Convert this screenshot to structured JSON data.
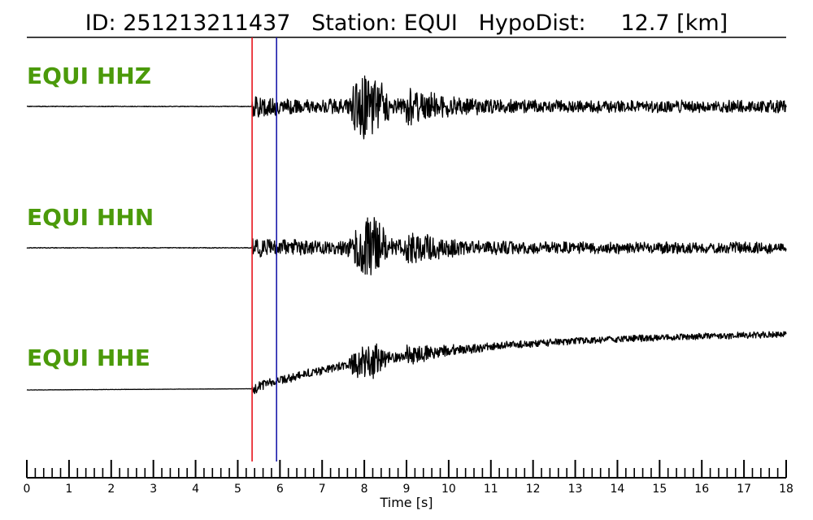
{
  "header": {
    "id_text": "ID: 251213211437",
    "station_text": "Station: EQUI",
    "hypodist_text": "HypoDist:     12.7 [km]"
  },
  "colors": {
    "label": "#4b9a0a",
    "p_pick": "#e8141c",
    "s_pick": "#1a1aaa",
    "trace": "#000000"
  },
  "chart_data": {
    "type": "line",
    "title": "ID: 251213211437   Station: EQUI   HypoDist:     12.7 [km]",
    "xlabel": "Time [s]",
    "ylabel": "",
    "xlim": [
      0,
      18
    ],
    "x_ticks": [
      "0",
      "1",
      "2",
      "3",
      "4",
      "5",
      "6",
      "7",
      "8",
      "9",
      "10",
      "11",
      "12",
      "13",
      "14",
      "15",
      "16",
      "17",
      "18"
    ],
    "minor_tick_step": 0.2,
    "grid": false,
    "picks": [
      {
        "phase": "P",
        "time": 5.34,
        "color": "#e8141c"
      },
      {
        "phase": "S",
        "time": 5.92,
        "color": "#1a1aaa"
      }
    ],
    "traces": [
      {
        "label": "EQUI HHZ",
        "trend": "flat"
      },
      {
        "label": "EQUI HHN",
        "trend": "flat"
      },
      {
        "label": "EQUI HHE",
        "trend": "drift-up"
      }
    ]
  }
}
